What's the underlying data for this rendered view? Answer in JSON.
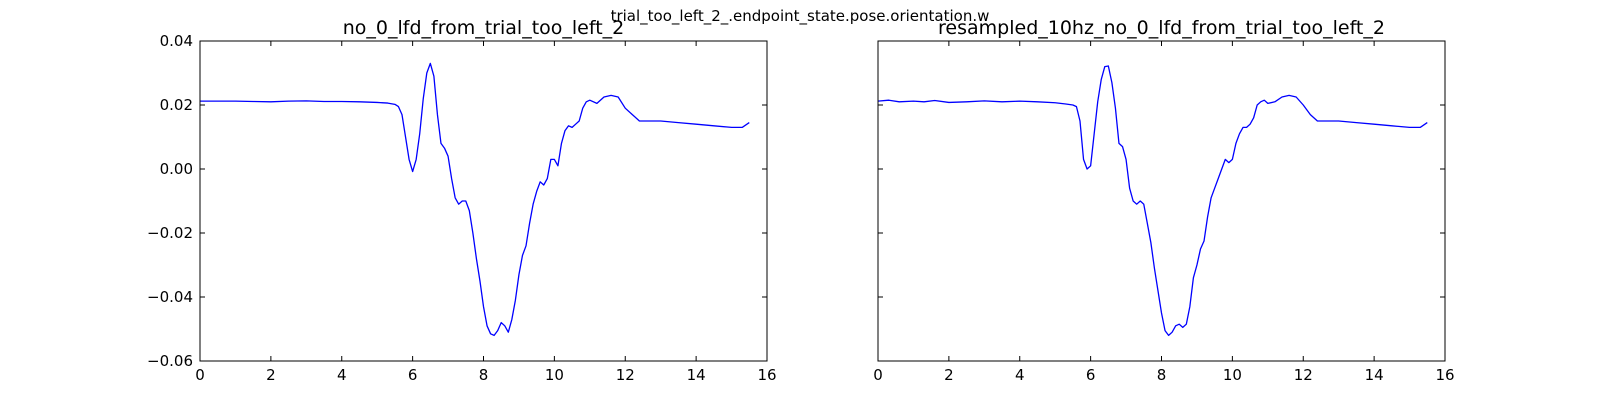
{
  "suptitle": "trial_too_left_2_.endpoint_state.pose.orientation.w",
  "chart_data": [
    {
      "type": "line",
      "title": "no_0_lfd_from_trial_too_left_2",
      "xlim": [
        0,
        16
      ],
      "ylim": [
        -0.06,
        0.04
      ],
      "xticks": [
        0,
        2,
        4,
        6,
        8,
        10,
        12,
        14,
        16
      ],
      "xtick_labels": [
        "0",
        "2",
        "4",
        "6",
        "8",
        "10",
        "12",
        "14",
        "16"
      ],
      "yticks": [
        -0.06,
        -0.04,
        -0.02,
        0.0,
        0.02,
        0.04
      ],
      "ytick_labels": [
        "−0.06",
        "−0.04",
        "−0.02",
        "0.00",
        "0.02",
        "0.04"
      ],
      "show_yticklabels": true,
      "grid": false,
      "color": "#0000ff",
      "series": [
        {
          "x": [
            0.0,
            0.5,
            1.0,
            1.5,
            2.0,
            2.5,
            3.0,
            3.5,
            4.0,
            4.5,
            5.0,
            5.3,
            5.5,
            5.6,
            5.7,
            5.8,
            5.9,
            6.0,
            6.1,
            6.2,
            6.3,
            6.4,
            6.5,
            6.6,
            6.7,
            6.8,
            6.9,
            7.0,
            7.1,
            7.2,
            7.3,
            7.4,
            7.5,
            7.6,
            7.7,
            7.8,
            7.9,
            8.0,
            8.1,
            8.2,
            8.3,
            8.4,
            8.5,
            8.6,
            8.7,
            8.8,
            8.9,
            9.0,
            9.1,
            9.2,
            9.3,
            9.4,
            9.5,
            9.6,
            9.7,
            9.8,
            9.9,
            10.0,
            10.1,
            10.2,
            10.3,
            10.4,
            10.5,
            10.6,
            10.7,
            10.8,
            10.9,
            11.0,
            11.2,
            11.4,
            11.6,
            11.8,
            12.0,
            12.2,
            12.4,
            12.6,
            12.8,
            13.0,
            13.5,
            14.0,
            14.5,
            15.0,
            15.3,
            15.5
          ],
          "y": [
            0.0212,
            0.0212,
            0.0212,
            0.0211,
            0.021,
            0.0212,
            0.0213,
            0.0211,
            0.0211,
            0.021,
            0.0208,
            0.0206,
            0.0202,
            0.0195,
            0.017,
            0.01,
            0.003,
            -0.0008,
            0.003,
            0.011,
            0.022,
            0.03,
            0.033,
            0.029,
            0.017,
            0.008,
            0.0065,
            0.004,
            -0.003,
            -0.009,
            -0.011,
            -0.01,
            -0.01,
            -0.013,
            -0.02,
            -0.028,
            -0.035,
            -0.043,
            -0.049,
            -0.0515,
            -0.052,
            -0.0505,
            -0.048,
            -0.049,
            -0.051,
            -0.047,
            -0.041,
            -0.033,
            -0.027,
            -0.024,
            -0.017,
            -0.011,
            -0.007,
            -0.004,
            -0.005,
            -0.003,
            0.003,
            0.003,
            0.001,
            0.008,
            0.012,
            0.0135,
            0.013,
            0.014,
            0.015,
            0.019,
            0.021,
            0.0215,
            0.0205,
            0.0225,
            0.023,
            0.0225,
            0.019,
            0.017,
            0.015,
            0.015,
            0.015,
            0.015,
            0.0145,
            0.014,
            0.0135,
            0.013,
            0.013,
            0.0145
          ]
        }
      ]
    },
    {
      "type": "line",
      "title": "resampled_10hz_no_0_lfd_from_trial_too_left_2",
      "xlim": [
        0,
        16
      ],
      "ylim": [
        -0.06,
        0.04
      ],
      "xticks": [
        0,
        2,
        4,
        6,
        8,
        10,
        12,
        14,
        16
      ],
      "xtick_labels": [
        "0",
        "2",
        "4",
        "6",
        "8",
        "10",
        "12",
        "14",
        "16"
      ],
      "yticks": [
        -0.06,
        -0.04,
        -0.02,
        0.0,
        0.02,
        0.04
      ],
      "show_yticklabels": false,
      "grid": false,
      "color": "#0000ff",
      "series": [
        {
          "x": [
            0.0,
            0.3,
            0.6,
            1.0,
            1.3,
            1.6,
            2.0,
            2.5,
            3.0,
            3.5,
            4.0,
            4.5,
            5.0,
            5.3,
            5.5,
            5.6,
            5.7,
            5.8,
            5.9,
            6.0,
            6.1,
            6.2,
            6.3,
            6.4,
            6.5,
            6.6,
            6.7,
            6.8,
            6.9,
            7.0,
            7.1,
            7.2,
            7.3,
            7.4,
            7.5,
            7.6,
            7.7,
            7.8,
            7.9,
            8.0,
            8.1,
            8.2,
            8.3,
            8.4,
            8.5,
            8.6,
            8.7,
            8.8,
            8.9,
            9.0,
            9.1,
            9.2,
            9.3,
            9.4,
            9.5,
            9.6,
            9.7,
            9.8,
            9.9,
            10.0,
            10.1,
            10.2,
            10.3,
            10.4,
            10.5,
            10.6,
            10.7,
            10.8,
            10.9,
            11.0,
            11.2,
            11.4,
            11.6,
            11.8,
            12.0,
            12.2,
            12.4,
            12.6,
            12.8,
            13.0,
            13.5,
            14.0,
            14.5,
            15.0,
            15.3,
            15.5
          ],
          "y": [
            0.0212,
            0.0215,
            0.021,
            0.0212,
            0.021,
            0.0214,
            0.0208,
            0.021,
            0.0213,
            0.021,
            0.0212,
            0.021,
            0.0207,
            0.0203,
            0.02,
            0.0195,
            0.015,
            0.003,
            0.0,
            0.001,
            0.011,
            0.021,
            0.028,
            0.032,
            0.0322,
            0.027,
            0.019,
            0.008,
            0.007,
            0.003,
            -0.006,
            -0.01,
            -0.011,
            -0.01,
            -0.011,
            -0.017,
            -0.023,
            -0.031,
            -0.038,
            -0.045,
            -0.0505,
            -0.052,
            -0.051,
            -0.049,
            -0.0485,
            -0.0495,
            -0.0485,
            -0.043,
            -0.034,
            -0.03,
            -0.025,
            -0.0225,
            -0.015,
            -0.009,
            -0.006,
            -0.003,
            0.0,
            0.003,
            0.002,
            0.003,
            0.008,
            0.011,
            0.013,
            0.013,
            0.014,
            0.016,
            0.02,
            0.021,
            0.0215,
            0.0205,
            0.021,
            0.0225,
            0.023,
            0.0225,
            0.02,
            0.017,
            0.015,
            0.015,
            0.015,
            0.015,
            0.0145,
            0.014,
            0.0135,
            0.013,
            0.013,
            0.0145
          ]
        }
      ]
    }
  ]
}
